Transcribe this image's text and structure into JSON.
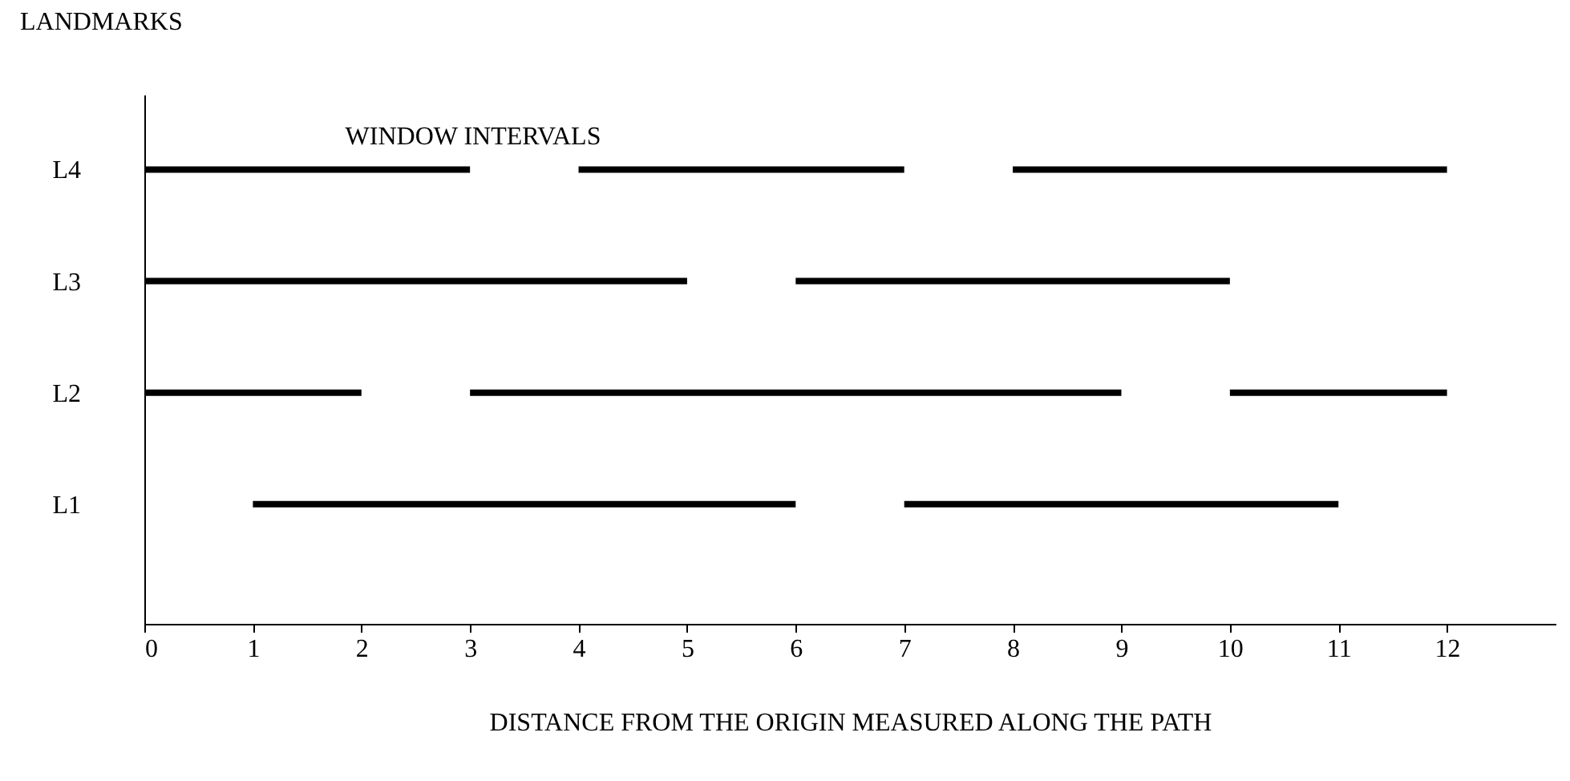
{
  "chart_data": {
    "type": "bar",
    "orientation": "horizontal",
    "title": "WINDOW INTERVALS",
    "xlabel": "DISTANCE FROM THE ORIGIN MEASURED ALONG THE PATH",
    "ylabel": "LANDMARKS",
    "categories": [
      "L4",
      "L3",
      "L2",
      "L1"
    ],
    "series": [
      {
        "color": "#000000",
        "base": [
          0,
          0,
          0,
          1
        ],
        "values": [
          3,
          5,
          2,
          5
        ]
      },
      {
        "color": "#000000",
        "base": [
          4,
          6,
          3,
          7
        ],
        "values": [
          3,
          4,
          6,
          4
        ]
      },
      {
        "color": "#000000",
        "base": [
          8,
          null,
          10,
          null
        ],
        "values": [
          4,
          null,
          2,
          null
        ]
      }
    ],
    "xlim": [
      0,
      13
    ],
    "xticks": [
      0,
      1,
      2,
      3,
      4,
      5,
      6,
      7,
      8,
      9,
      10,
      11,
      12
    ],
    "grid": false
  }
}
